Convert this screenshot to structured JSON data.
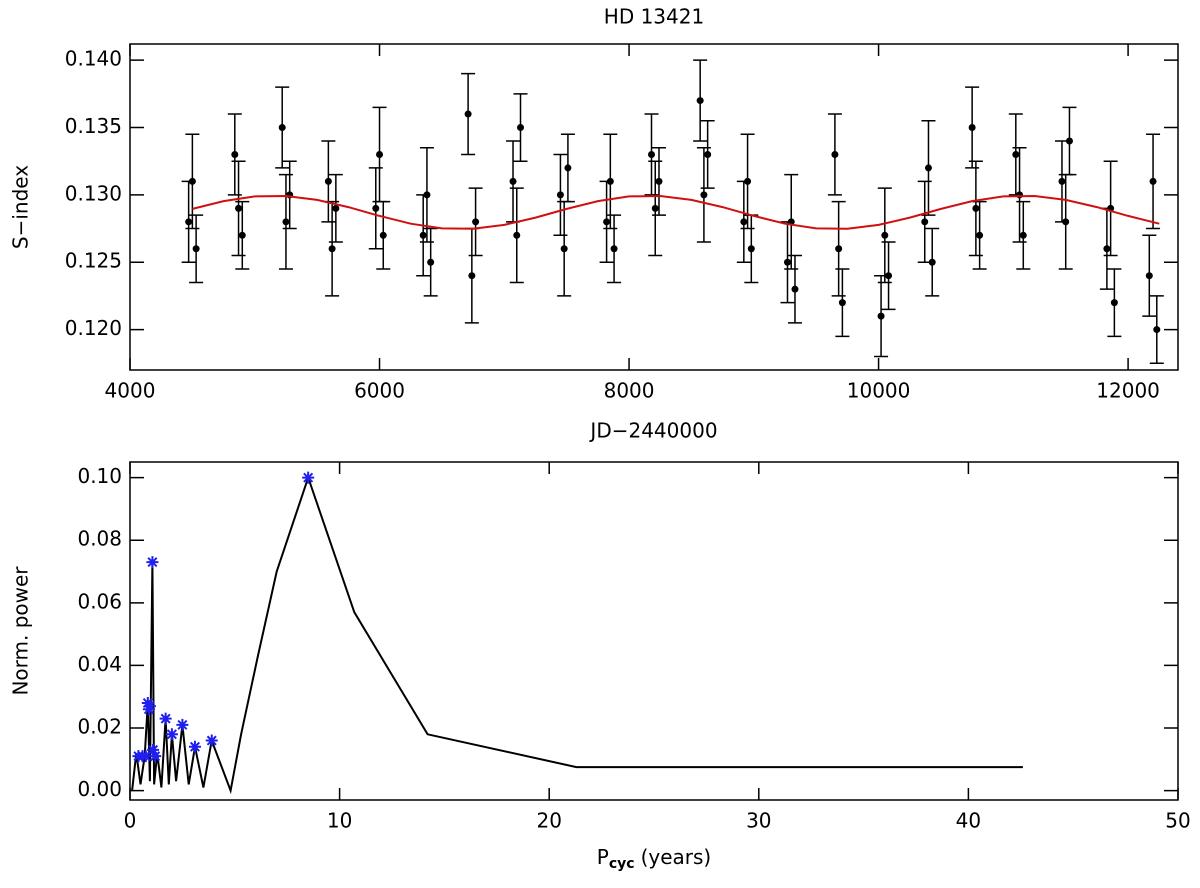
{
  "chart_data": [
    {
      "type": "scatter",
      "title": "HD 13421",
      "xlabel": "JD−2440000",
      "ylabel": "S−index",
      "xlim": [
        4000,
        12400
      ],
      "xticks": [
        4000,
        6000,
        8000,
        10000,
        12000
      ],
      "ylim": [
        0.117,
        0.1412
      ],
      "yticks": [
        {
          "value": 0.12,
          "label": "0.120"
        },
        {
          "value": 0.125,
          "label": "0.125"
        },
        {
          "value": 0.13,
          "label": "0.130"
        },
        {
          "value": 0.135,
          "label": "0.135"
        },
        {
          "value": 0.14,
          "label": "0.140"
        }
      ],
      "series": [
        {
          "style": "errorbar",
          "color": "#000000",
          "x": [
            4470,
            4500,
            4530,
            4840,
            4870,
            4900,
            5220,
            5250,
            5280,
            5590,
            5620,
            5650,
            5970,
            6000,
            6030,
            6350,
            6380,
            6410,
            6710,
            6740,
            6770,
            7070,
            7100,
            7130,
            7450,
            7480,
            7510,
            7820,
            7850,
            7880,
            8180,
            8210,
            8240,
            8570,
            8600,
            8630,
            8920,
            8950,
            8980,
            9270,
            9300,
            9330,
            9650,
            9680,
            9710,
            10020,
            10050,
            10080,
            10370,
            10400,
            10430,
            10750,
            10780,
            10810,
            11100,
            11130,
            11160,
            11470,
            11500,
            11530,
            11830,
            11860,
            11890,
            12170,
            12200,
            12230
          ],
          "values": [
            0.128,
            0.131,
            0.126,
            0.133,
            0.129,
            0.127,
            0.135,
            0.128,
            0.13,
            0.131,
            0.126,
            0.129,
            0.129,
            0.133,
            0.127,
            0.127,
            0.13,
            0.125,
            0.136,
            0.124,
            0.128,
            0.131,
            0.127,
            0.135,
            0.13,
            0.126,
            0.132,
            0.128,
            0.131,
            0.126,
            0.133,
            0.129,
            0.131,
            0.137,
            0.13,
            0.133,
            0.128,
            0.131,
            0.126,
            0.125,
            0.128,
            0.123,
            0.133,
            0.126,
            0.122,
            0.121,
            0.127,
            0.124,
            0.128,
            0.132,
            0.125,
            0.135,
            0.129,
            0.127,
            0.133,
            0.13,
            0.127,
            0.131,
            0.128,
            0.134,
            0.126,
            0.129,
            0.122,
            0.124,
            0.131,
            0.12
          ],
          "errors": [
            0.003,
            0.0035,
            0.0025,
            0.003,
            0.0035,
            0.0025,
            0.003,
            0.0035,
            0.0025,
            0.003,
            0.0035,
            0.0025,
            0.003,
            0.0035,
            0.0025,
            0.003,
            0.0035,
            0.0025,
            0.003,
            0.0035,
            0.0025,
            0.003,
            0.0035,
            0.0025,
            0.003,
            0.0035,
            0.0025,
            0.003,
            0.0035,
            0.0025,
            0.003,
            0.0035,
            0.0025,
            0.003,
            0.0035,
            0.0025,
            0.003,
            0.0035,
            0.0025,
            0.003,
            0.0035,
            0.0025,
            0.003,
            0.0035,
            0.0025,
            0.003,
            0.0035,
            0.0025,
            0.003,
            0.0035,
            0.0025,
            0.003,
            0.0035,
            0.0025,
            0.003,
            0.0035,
            0.0025,
            0.003,
            0.0035,
            0.0025,
            0.003,
            0.0035,
            0.0025,
            0.003,
            0.0035,
            0.0025
          ]
        },
        {
          "style": "line",
          "color": "#d01010",
          "x": [
            4500,
            4750,
            5000,
            5250,
            5500,
            5750,
            6000,
            6250,
            6500,
            6750,
            7000,
            7250,
            7500,
            7750,
            8000,
            8250,
            8500,
            8750,
            9000,
            9250,
            9500,
            9750,
            10000,
            10250,
            10500,
            10750,
            11000,
            11250,
            11500,
            11750,
            12000,
            12250
          ],
          "values": [
            0.12896,
            0.12954,
            0.12989,
            0.12992,
            0.12963,
            0.12909,
            0.12844,
            0.12786,
            0.12751,
            0.12748,
            0.12777,
            0.12831,
            0.12896,
            0.12954,
            0.12989,
            0.12992,
            0.12963,
            0.12909,
            0.12844,
            0.12786,
            0.12751,
            0.12748,
            0.12777,
            0.12831,
            0.12896,
            0.12954,
            0.12989,
            0.12992,
            0.12963,
            0.12909,
            0.12844,
            0.12786
          ]
        }
      ]
    },
    {
      "type": "line",
      "ylabel": "Norm. power",
      "xlabel": {
        "main": "P",
        "sub": "cyc",
        "rest": "(years)"
      },
      "xlim": [
        0,
        50
      ],
      "xticks": [
        0,
        10,
        20,
        30,
        40,
        50
      ],
      "ylim": [
        -0.003,
        0.105
      ],
      "yticks": [
        {
          "value": 0,
          "label": "0.00"
        },
        {
          "value": 0.02,
          "label": "0.02"
        },
        {
          "value": 0.04,
          "label": "0.04"
        },
        {
          "value": 0.06,
          "label": "0.06"
        },
        {
          "value": 0.08,
          "label": "0.08"
        },
        {
          "value": 0.1,
          "label": "0.10"
        }
      ],
      "series": [
        {
          "style": "line",
          "color": "#000000",
          "x": [
            0.1,
            0.3,
            0.5,
            0.7,
            0.85,
            0.95,
            1.07,
            1.15,
            1.3,
            1.5,
            1.7,
            1.85,
            2.0,
            2.2,
            2.5,
            2.8,
            3.1,
            3.5,
            3.9,
            4.8,
            5.3,
            6.1,
            7.0,
            8.5,
            10.7,
            14.2,
            21.3,
            30,
            42.6
          ],
          "values": [
            0,
            0.012,
            0.002,
            0.011,
            0.028,
            0.003,
            0.073,
            0.002,
            0.012,
            0.001,
            0.023,
            0.002,
            0.018,
            0.003,
            0.021,
            0.002,
            0.014,
            0.001,
            0.016,
            0,
            0.018,
            0.043,
            0.07,
            0.1,
            0.057,
            0.018,
            0.0075,
            0.0075,
            0.0075
          ]
        },
        {
          "style": "asterisk",
          "color": "#2020ee",
          "x": [
            0.4,
            0.6,
            0.75,
            0.85,
            0.9,
            0.95,
            1.07,
            1.1,
            1.2,
            1.7,
            2.0,
            2.5,
            3.1,
            3.9,
            8.5
          ],
          "values": [
            0.011,
            0.011,
            0.011,
            0.028,
            0.026,
            0.027,
            0.073,
            0.013,
            0.011,
            0.023,
            0.018,
            0.021,
            0.014,
            0.016,
            0.1
          ]
        }
      ]
    }
  ]
}
